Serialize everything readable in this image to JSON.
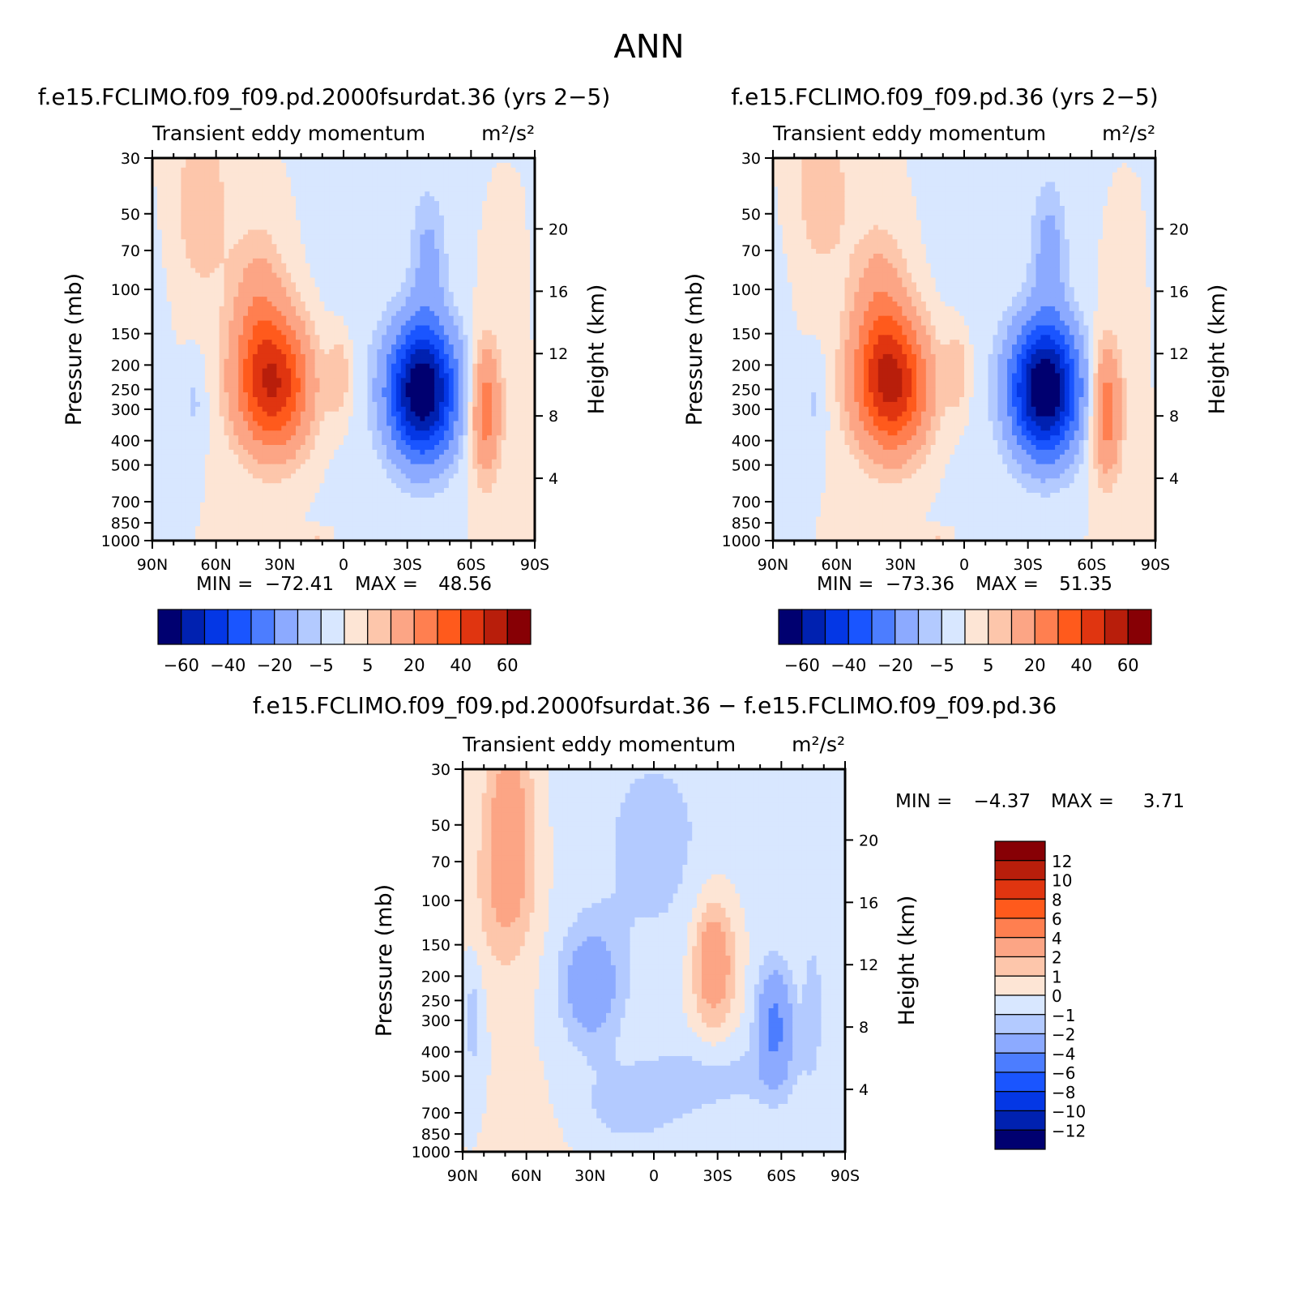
{
  "figure_title": "ANN",
  "chart_data": [
    {
      "type": "heatmap",
      "title": "f.e15.FCLIMO.f09_f09.pd.2000fsurdat.36 (yrs 2−5)",
      "subtitle": "Transient eddy momentum",
      "units": "m²/s²",
      "ylabel": "Pressure (mb)",
      "ylabel_right": "Height (km)",
      "x_ticks": [
        "90N",
        "60N",
        "30N",
        "0",
        "30S",
        "60S",
        "90S"
      ],
      "x_range": [
        90,
        -90
      ],
      "y_ticks": [
        30,
        50,
        70,
        100,
        150,
        200,
        250,
        300,
        400,
        500,
        700,
        850,
        1000
      ],
      "y_range": [
        30,
        1000
      ],
      "y_scale": "log",
      "height_ticks": [
        20,
        16,
        12,
        8,
        4
      ],
      "min_label": "MIN =",
      "min_value": "−72.41",
      "max_label": "MAX =",
      "max_value": "48.56",
      "levels": [
        -70,
        -60,
        -50,
        -40,
        -30,
        -20,
        -10,
        -5,
        0,
        5,
        10,
        20,
        30,
        40,
        50,
        60,
        70
      ],
      "colorbar_labels": [
        "−60",
        "−40",
        "−20",
        "−5",
        "5",
        "20",
        "40",
        "60"
      ],
      "colorbar_orientation": "horizontal",
      "features": [
        {
          "lat": 33,
          "p": 240,
          "value": 48.56,
          "sx": 12,
          "sy": 0.42
        },
        {
          "lat": 40,
          "p": 120,
          "value": 14,
          "sx": 9,
          "sy": 0.5
        },
        {
          "lat": -37,
          "p": 255,
          "value": -72.41,
          "sx": 11,
          "sy": 0.42
        },
        {
          "lat": -40,
          "p": 75,
          "value": -12,
          "sx": 6,
          "sy": 0.45
        },
        {
          "lat": -67,
          "p": 300,
          "value": 26,
          "sx": 5,
          "sy": 0.42
        },
        {
          "lat": 67,
          "p": 45,
          "value": 9,
          "sx": 9,
          "sy": 0.6
        },
        {
          "lat": 2,
          "p": 220,
          "value": 10,
          "sx": 4,
          "sy": 0.28
        },
        {
          "lat": 70,
          "p": 280,
          "value": -6,
          "sx": 4,
          "sy": 0.3
        },
        {
          "lat": 12,
          "p": 960,
          "value": 6,
          "sx": 4,
          "sy": 0.05
        },
        {
          "lat": 0,
          "p": 150,
          "value": -2,
          "sx": 15,
          "sy": 1.2
        },
        {
          "lat": 88,
          "p": 300,
          "value": -2,
          "sx": 5,
          "sy": 1.2
        }
      ]
    },
    {
      "type": "heatmap",
      "title": "f.e15.FCLIMO.f09_f09.pd.36 (yrs 2−5)",
      "subtitle": "Transient eddy momentum",
      "units": "m²/s²",
      "ylabel": "Pressure (mb)",
      "ylabel_right": "Height (km)",
      "x_ticks": [
        "90N",
        "60N",
        "30N",
        "0",
        "30S",
        "60S",
        "90S"
      ],
      "x_range": [
        90,
        -90
      ],
      "y_ticks": [
        30,
        50,
        70,
        100,
        150,
        200,
        250,
        300,
        400,
        500,
        700,
        850,
        1000
      ],
      "y_range": [
        30,
        1000
      ],
      "y_scale": "log",
      "height_ticks": [
        20,
        16,
        12,
        8,
        4
      ],
      "min_label": "MIN =",
      "min_value": "−73.36",
      "max_label": "MAX =",
      "max_value": "51.35",
      "levels": [
        -70,
        -60,
        -50,
        -40,
        -30,
        -20,
        -10,
        -5,
        0,
        5,
        10,
        20,
        30,
        40,
        50,
        60,
        70
      ],
      "colorbar_labels": [
        "−60",
        "−40",
        "−20",
        "−5",
        "5",
        "20",
        "40",
        "60"
      ],
      "colorbar_orientation": "horizontal",
      "features": [
        {
          "lat": 34,
          "p": 240,
          "value": 51.35,
          "sx": 12,
          "sy": 0.42
        },
        {
          "lat": 40,
          "p": 120,
          "value": 15,
          "sx": 9,
          "sy": 0.5
        },
        {
          "lat": -38,
          "p": 250,
          "value": -73.36,
          "sx": 11,
          "sy": 0.42
        },
        {
          "lat": -40,
          "p": 70,
          "value": -13,
          "sx": 6,
          "sy": 0.45
        },
        {
          "lat": -67,
          "p": 300,
          "value": 27,
          "sx": 5,
          "sy": 0.42
        },
        {
          "lat": 67,
          "p": 40,
          "value": 9,
          "sx": 9,
          "sy": 0.55
        },
        {
          "lat": 3,
          "p": 210,
          "value": 10,
          "sx": 4,
          "sy": 0.28
        },
        {
          "lat": 70,
          "p": 280,
          "value": -6,
          "sx": 4,
          "sy": 0.3
        },
        {
          "lat": 12,
          "p": 960,
          "value": 6,
          "sx": 4,
          "sy": 0.05
        },
        {
          "lat": 0,
          "p": 150,
          "value": -2,
          "sx": 15,
          "sy": 1.2
        },
        {
          "lat": 88,
          "p": 300,
          "value": -2,
          "sx": 5,
          "sy": 1.2
        }
      ]
    },
    {
      "type": "heatmap",
      "title": "f.e15.FCLIMO.f09_f09.pd.2000fsurdat.36 − f.e15.FCLIMO.f09_f09.pd.36",
      "subtitle": "Transient eddy momentum",
      "units": "m²/s²",
      "ylabel": "Pressure (mb)",
      "ylabel_right": "Height (km)",
      "x_ticks": [
        "90N",
        "60N",
        "30N",
        "0",
        "30S",
        "60S",
        "90S"
      ],
      "x_range": [
        90,
        -90
      ],
      "y_ticks": [
        30,
        50,
        70,
        100,
        150,
        200,
        250,
        300,
        400,
        500,
        700,
        850,
        1000
      ],
      "y_range": [
        30,
        1000
      ],
      "y_scale": "log",
      "height_ticks": [
        20,
        16,
        12,
        8,
        4
      ],
      "min_label": "MIN =",
      "min_value": "−4.37",
      "max_label": "MAX =",
      "max_value": "3.71",
      "levels": [
        -14,
        -12,
        -10,
        -8,
        -6,
        -4,
        -2,
        -1,
        0,
        1,
        2,
        4,
        6,
        8,
        10,
        12,
        14
      ],
      "colorbar_labels": [
        "12",
        "10",
        "8",
        "6",
        "4",
        "2",
        "1",
        "0",
        "−1",
        "−2",
        "−4",
        "−6",
        "−8",
        "−10",
        "−12"
      ],
      "colorbar_orientation": "vertical",
      "features": [
        {
          "lat": 68,
          "p": 45,
          "value": 2.8,
          "sx": 8,
          "sy": 0.6
        },
        {
          "lat": 70,
          "p": 100,
          "value": 1.6,
          "sx": 10,
          "sy": 0.5
        },
        {
          "lat": 30,
          "p": 220,
          "value": -3.2,
          "sx": 10,
          "sy": 0.38
        },
        {
          "lat": -28,
          "p": 175,
          "value": 3.71,
          "sx": 7,
          "sy": 0.42
        },
        {
          "lat": -57,
          "p": 310,
          "value": -4.37,
          "sx": 6,
          "sy": 0.38
        },
        {
          "lat": 0,
          "p": 60,
          "value": -1.3,
          "sx": 25,
          "sy": 0.9
        },
        {
          "lat": 15,
          "p": 700,
          "value": -1.2,
          "sx": 25,
          "sy": 0.3
        },
        {
          "lat": -30,
          "p": 500,
          "value": -1.2,
          "sx": 30,
          "sy": 0.25
        },
        {
          "lat": -75,
          "p": 250,
          "value": -1.4,
          "sx": 4,
          "sy": 0.5
        },
        {
          "lat": 85,
          "p": 300,
          "value": -1.5,
          "sx": 3,
          "sy": 0.4
        },
        {
          "lat": 50,
          "p": 800,
          "value": 0.6,
          "sx": 15,
          "sy": 0.4
        }
      ]
    }
  ],
  "colors": {
    "palette": [
      "#000070",
      "#0021b0",
      "#0437e5",
      "#1a55ff",
      "#4c7dff",
      "#8caaff",
      "#b3caff",
      "#d8e7ff",
      "#fde5d5",
      "#fdc6ab",
      "#fca585",
      "#ff7f50",
      "#ff5a1c",
      "#e03510",
      "#b81e0b",
      "#870005"
    ],
    "colorbar_reference": [
      6,
      7,
      8,
      9
    ],
    "axis": "#000000"
  }
}
